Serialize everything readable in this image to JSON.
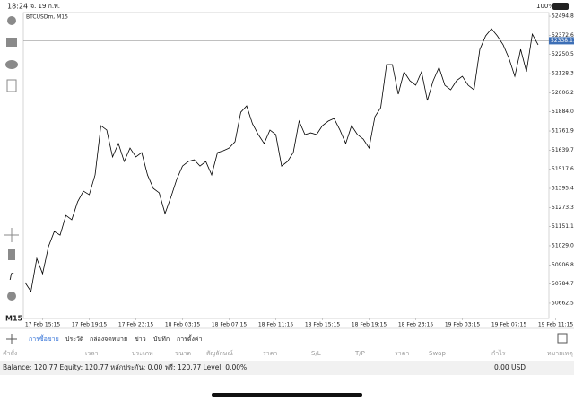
{
  "status_bar": {
    "time": "18:24",
    "date": "จ. 19 ก.พ.",
    "battery": "100%"
  },
  "chart_data": {
    "type": "line",
    "title": "BTCUSDm, M15",
    "timeframe": "M15",
    "color": "#000000",
    "values": [
      50794,
      50737,
      50948,
      50851,
      51023,
      51120,
      51097,
      51223,
      51195,
      51309,
      51378,
      51355,
      51481,
      51796,
      51768,
      51596,
      51682,
      51567,
      51653,
      51596,
      51624,
      51481,
      51395,
      51367,
      51235,
      51338,
      51452,
      51538,
      51567,
      51578,
      51538,
      51567,
      51481,
      51624,
      51636,
      51653,
      51693,
      51882,
      51922,
      51808,
      51739,
      51682,
      51768,
      51739,
      51538,
      51567,
      51624,
      51825,
      51739,
      51750,
      51739,
      51796,
      51825,
      51842,
      51768,
      51682,
      51796,
      51739,
      51710,
      51653,
      51853,
      51911,
      52186,
      52186,
      51997,
      52140,
      52083,
      52054,
      52140,
      51957,
      52083,
      52168,
      52054,
      52025,
      52083,
      52111,
      52054,
      52025,
      52283,
      52369,
      52415,
      52369,
      52312,
      52226,
      52111,
      52283,
      52140,
      52380,
      52312
    ],
    "ylim": [
      50565,
      52518
    ],
    "yticks": [
      {
        "value": 52494.8,
        "label": "52494.80"
      },
      {
        "value": 52372.65,
        "label": "52372.65"
      },
      {
        "value": 52250.5,
        "label": "52250.50"
      },
      {
        "value": 52128.35,
        "label": "52128.35"
      },
      {
        "value": 52006.2,
        "label": "52006.20"
      },
      {
        "value": 51884.05,
        "label": "51884.05"
      },
      {
        "value": 51761.9,
        "label": "51761.90"
      },
      {
        "value": 51639.75,
        "label": "51639.75"
      },
      {
        "value": 51517.6,
        "label": "51517.60"
      },
      {
        "value": 51395.45,
        "label": "51395.45"
      },
      {
        "value": 51273.3,
        "label": "51273.30"
      },
      {
        "value": 51151.15,
        "label": "51151.15"
      },
      {
        "value": 51029,
        "label": "51029.00"
      },
      {
        "value": 50906.85,
        "label": "50906.85"
      },
      {
        "value": 50784.7,
        "label": "50784.70"
      },
      {
        "value": 50662.55,
        "label": "50662.55"
      }
    ],
    "xticks": [
      "17 Feb 15:15",
      "17 Feb 19:15",
      "17 Feb 23:15",
      "18 Feb 03:15",
      "18 Feb 07:15",
      "18 Feb 11:15",
      "18 Feb 15:15",
      "18 Feb 19:15",
      "18 Feb 23:15",
      "19 Feb 03:15",
      "19 Feb 07:15",
      "19 Feb 11:15"
    ],
    "current_price": {
      "value": 52338.11,
      "label": "52338.11"
    }
  },
  "tabs": [
    "การซื้อขาย",
    "ประวัติ",
    "กล่องจดหมาย",
    "ข่าว",
    "บันทึก",
    "การตั้งค่า"
  ],
  "columns": [
    "คำสั่ง",
    "เวลา",
    "ประเภท",
    "ขนาด",
    "สัญลักษณ์",
    "ราคา",
    "S/L",
    "T/P",
    "ราคา",
    "Swap",
    "กำไร",
    "หมายเหตุ"
  ],
  "account": {
    "summary": "Balance: 120.77 Equity: 120.77 หลักประกัน: 0.00 ฟรี: 120.77 Level: 0.00%",
    "profit": "0.00",
    "currency": "USD"
  }
}
